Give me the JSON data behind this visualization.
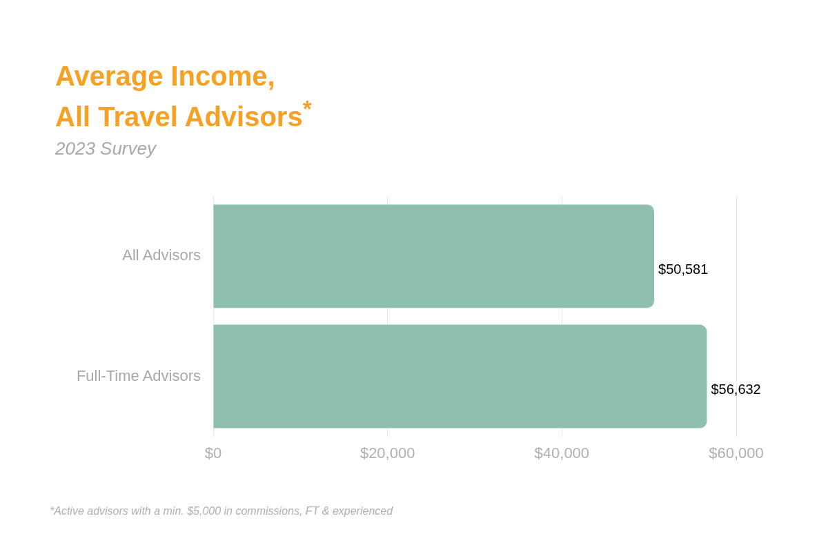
{
  "chart_data": {
    "type": "bar",
    "orientation": "horizontal",
    "title": "Average Income,\nAll Travel Advisors$^{*}$",
    "subtitle": "2023 Survey",
    "categories": [
      "All Advisors",
      "Full-Time Advisors"
    ],
    "values": [
      50581,
      56632
    ],
    "value_labels": [
      "$50,581",
      "$56,632"
    ],
    "color": "#8fbfb1",
    "xlim": [
      0,
      60000
    ],
    "xticks": [
      {
        "value": 0,
        "label": "$0"
      },
      {
        "value": 20000,
        "label": "$20,000"
      },
      {
        "value": 40000,
        "label": "$40,000"
      },
      {
        "value": 60000,
        "label": "$60,000"
      }
    ],
    "grid": "x",
    "annotations": [
      "*Active advisors with a min. $5,000 in commissions, FT & experienced"
    ]
  }
}
